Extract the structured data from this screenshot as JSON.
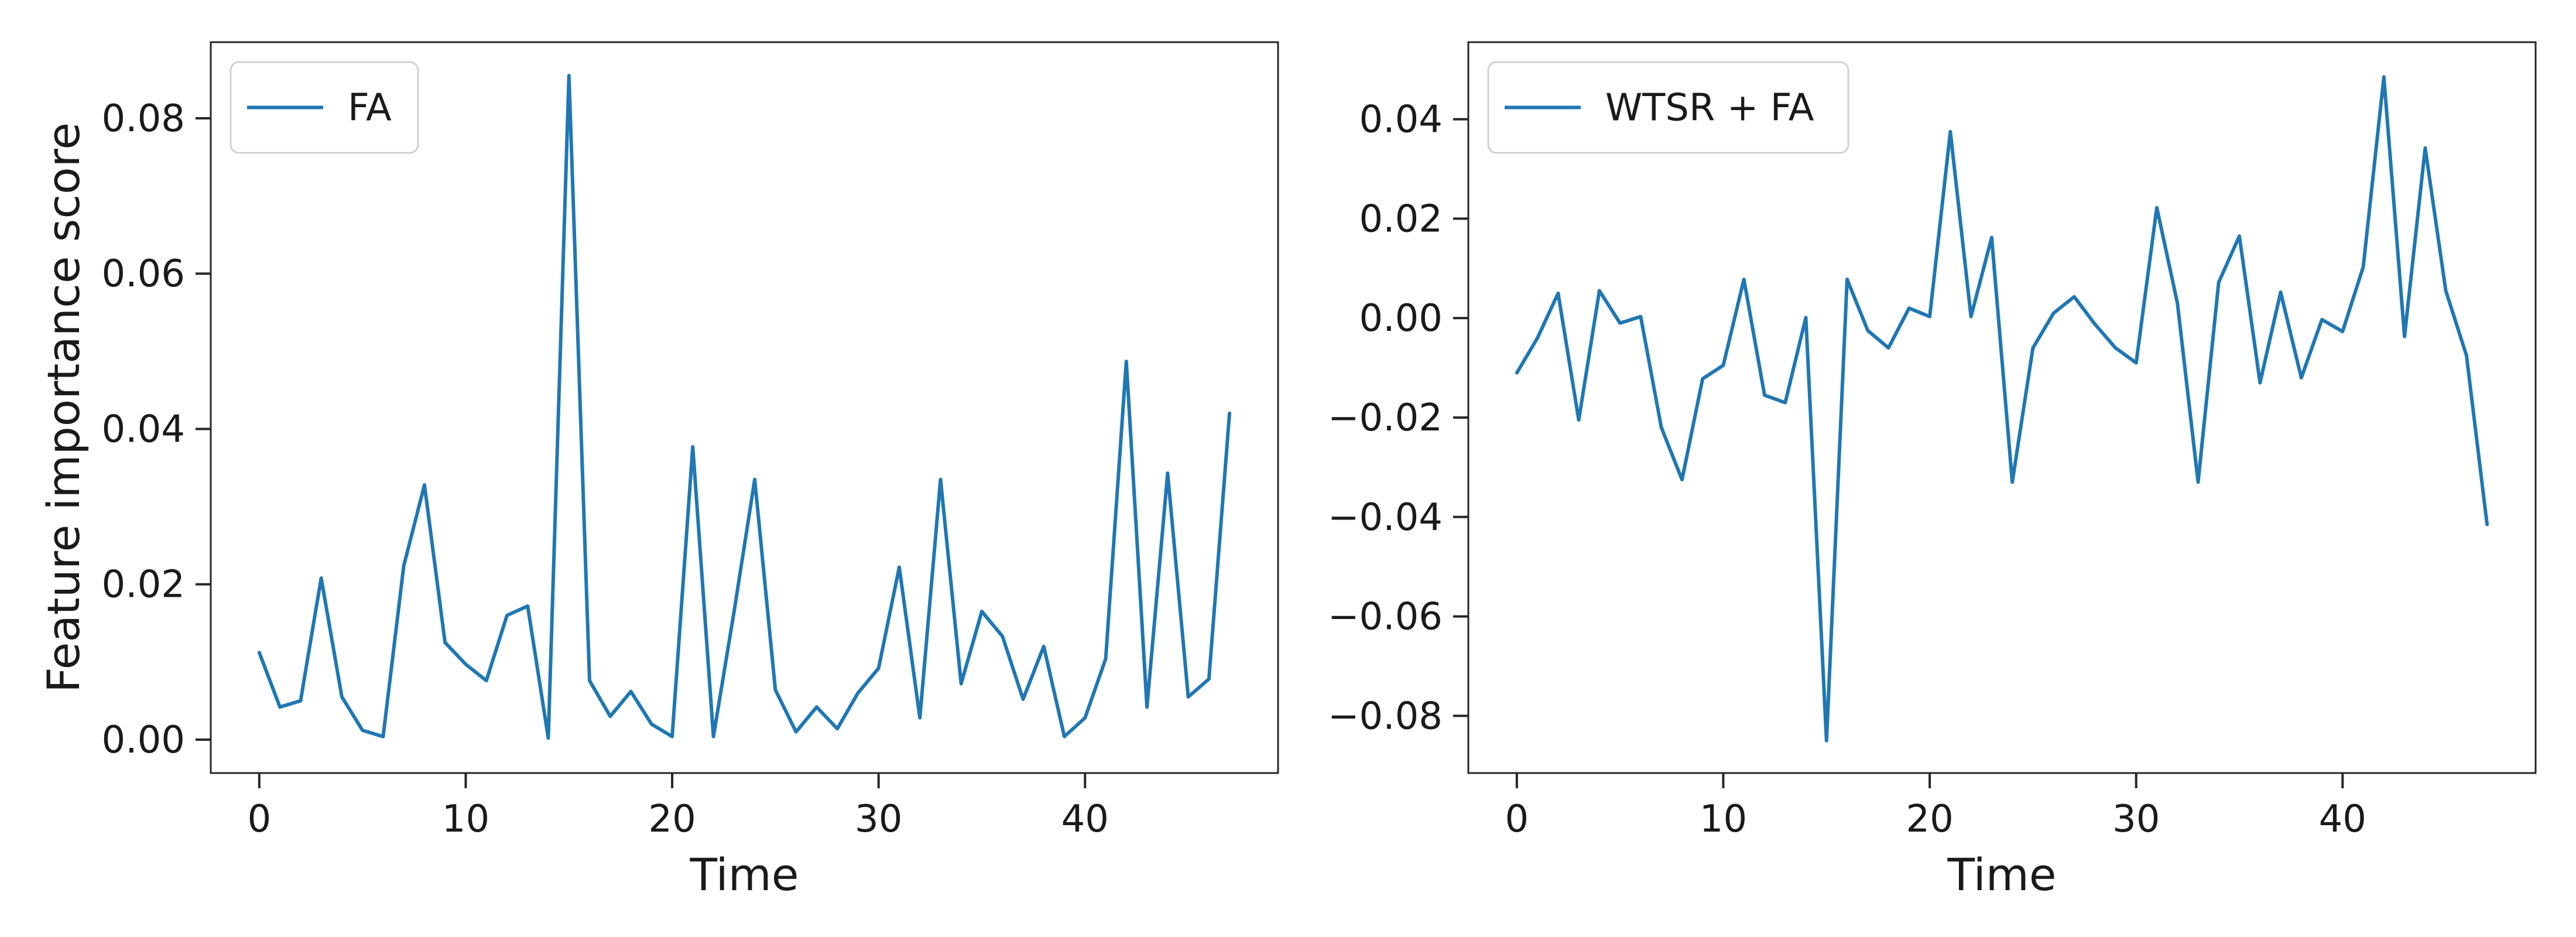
{
  "chart_data": [
    {
      "type": "line",
      "xlabel": "Time",
      "ylabel": "Feature importance score",
      "xlim": [
        -2.35,
        49.35
      ],
      "ylim": [
        -0.0043,
        0.0898
      ],
      "xticks": [
        0,
        10,
        20,
        30,
        40
      ],
      "xtick_labels": [
        "0",
        "10",
        "20",
        "30",
        "40"
      ],
      "yticks": [
        0.0,
        0.02,
        0.04,
        0.06,
        0.08
      ],
      "ytick_labels": [
        "0.00",
        "0.02",
        "0.04",
        "0.06",
        "0.08"
      ],
      "grid": false,
      "legend_position": "top-left",
      "color": "#1f77b4",
      "series": [
        {
          "name": "FA",
          "x": [
            0,
            1,
            2,
            3,
            4,
            5,
            6,
            7,
            8,
            9,
            10,
            11,
            12,
            13,
            14,
            15,
            16,
            17,
            18,
            19,
            20,
            21,
            22,
            23,
            24,
            25,
            26,
            27,
            28,
            29,
            30,
            31,
            32,
            33,
            34,
            35,
            36,
            37,
            38,
            39,
            40,
            41,
            42,
            43,
            44,
            45,
            46,
            47
          ],
          "values": [
            0.0112,
            0.0042,
            0.005,
            0.0208,
            0.0055,
            0.0012,
            0.0004,
            0.0224,
            0.0328,
            0.0125,
            0.0097,
            0.0076,
            0.016,
            0.0172,
            0.0002,
            0.0855,
            0.0076,
            0.003,
            0.0062,
            0.002,
            0.0004,
            0.0377,
            0.0004,
            0.0165,
            0.0335,
            0.0064,
            0.001,
            0.0042,
            0.0014,
            0.006,
            0.0092,
            0.0222,
            0.0028,
            0.0335,
            0.0072,
            0.0165,
            0.0133,
            0.0052,
            0.012,
            0.0004,
            0.0028,
            0.0104,
            0.0487,
            0.0042,
            0.0343,
            0.0055,
            0.0078,
            0.042
          ]
        }
      ]
    },
    {
      "type": "line",
      "xlabel": "Time",
      "ylabel": "",
      "xlim": [
        -2.35,
        49.35
      ],
      "ylim": [
        -0.0915,
        0.0555
      ],
      "xticks": [
        0,
        10,
        20,
        30,
        40
      ],
      "xtick_labels": [
        "0",
        "10",
        "20",
        "30",
        "40"
      ],
      "yticks": [
        -0.08,
        -0.06,
        -0.04,
        -0.02,
        0.0,
        0.02,
        0.04
      ],
      "ytick_labels": [
        "−0.08",
        "−0.06",
        "−0.04",
        "−0.02",
        "0.00",
        "0.02",
        "0.04"
      ],
      "grid": false,
      "legend_position": "top-left",
      "color": "#1f77b4",
      "series": [
        {
          "name": "WTSR + FA",
          "x": [
            0,
            1,
            2,
            3,
            4,
            5,
            6,
            7,
            8,
            9,
            10,
            11,
            12,
            13,
            14,
            15,
            16,
            17,
            18,
            19,
            20,
            21,
            22,
            23,
            24,
            25,
            26,
            27,
            28,
            29,
            30,
            31,
            32,
            33,
            34,
            35,
            36,
            37,
            38,
            39,
            40,
            41,
            42,
            43,
            44,
            45,
            46,
            47
          ],
          "values": [
            -0.011,
            -0.004,
            0.005,
            -0.0205,
            0.0055,
            -0.001,
            0.0003,
            -0.022,
            -0.0325,
            -0.0122,
            -0.0095,
            0.0078,
            -0.0155,
            -0.017,
            0.0001,
            -0.085,
            0.0078,
            -0.0025,
            -0.006,
            0.002,
            0.0003,
            0.0375,
            0.0003,
            0.0162,
            -0.033,
            -0.006,
            0.001,
            0.0043,
            -0.0012,
            -0.006,
            -0.009,
            0.0222,
            0.003,
            -0.033,
            0.0072,
            0.0165,
            -0.013,
            0.0052,
            -0.012,
            -0.0003,
            -0.0027,
            0.0103,
            0.0485,
            -0.0037,
            0.0342,
            0.0055,
            -0.0075,
            -0.0415
          ]
        }
      ]
    }
  ]
}
